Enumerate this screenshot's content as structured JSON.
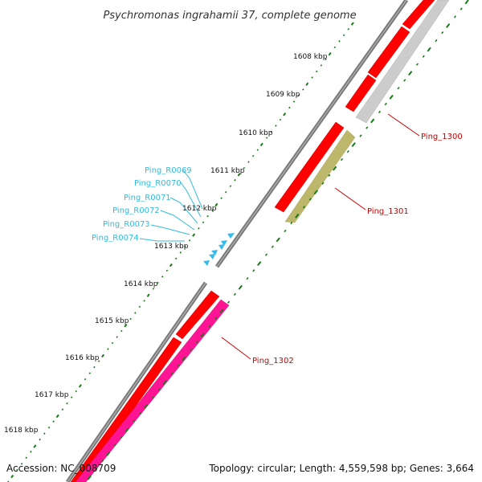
{
  "title": "Psychromonas ingrahamii 37, complete genome",
  "scale": {
    "ticks": [
      {
        "label": "1608 kbp"
      },
      {
        "label": "1609 kbp"
      },
      {
        "label": "1610 kbp"
      },
      {
        "label": "1611 kbp"
      },
      {
        "label": "1612 kbp"
      },
      {
        "label": "1613 kbp"
      },
      {
        "label": "1614 kbp"
      },
      {
        "label": "1615 kbp"
      },
      {
        "label": "1616 kbp"
      },
      {
        "label": "1617 kbp"
      },
      {
        "label": "1618 kbp"
      }
    ]
  },
  "genes": [
    {
      "label": "Ping_1300",
      "color": "#cc0000"
    },
    {
      "label": "Ping_1301",
      "color": "#cc0000"
    },
    {
      "label": "Ping_1302",
      "color": "#cc0000"
    }
  ],
  "rnas": [
    {
      "label": "Ping_R0069"
    },
    {
      "label": "Ping_R0070"
    },
    {
      "label": "Ping_R0071"
    },
    {
      "label": "Ping_R0072"
    },
    {
      "label": "Ping_R0073"
    },
    {
      "label": "Ping_R0074"
    }
  ],
  "colors": {
    "backbone": "#777777",
    "cds_forward": "#ff0000",
    "cds_reverse_gray": "#c8c8c8",
    "cds_reverse_olive": "#bdb76b",
    "cds_reverse_pink": "#ff1493",
    "trna": "#33bbee",
    "tick_green": "#1a7a1a"
  },
  "footer": {
    "accession": "Accession: NC_008709",
    "topology": "Topology: circular; Length: 4,559,598 bp; Genes: 3,664"
  }
}
